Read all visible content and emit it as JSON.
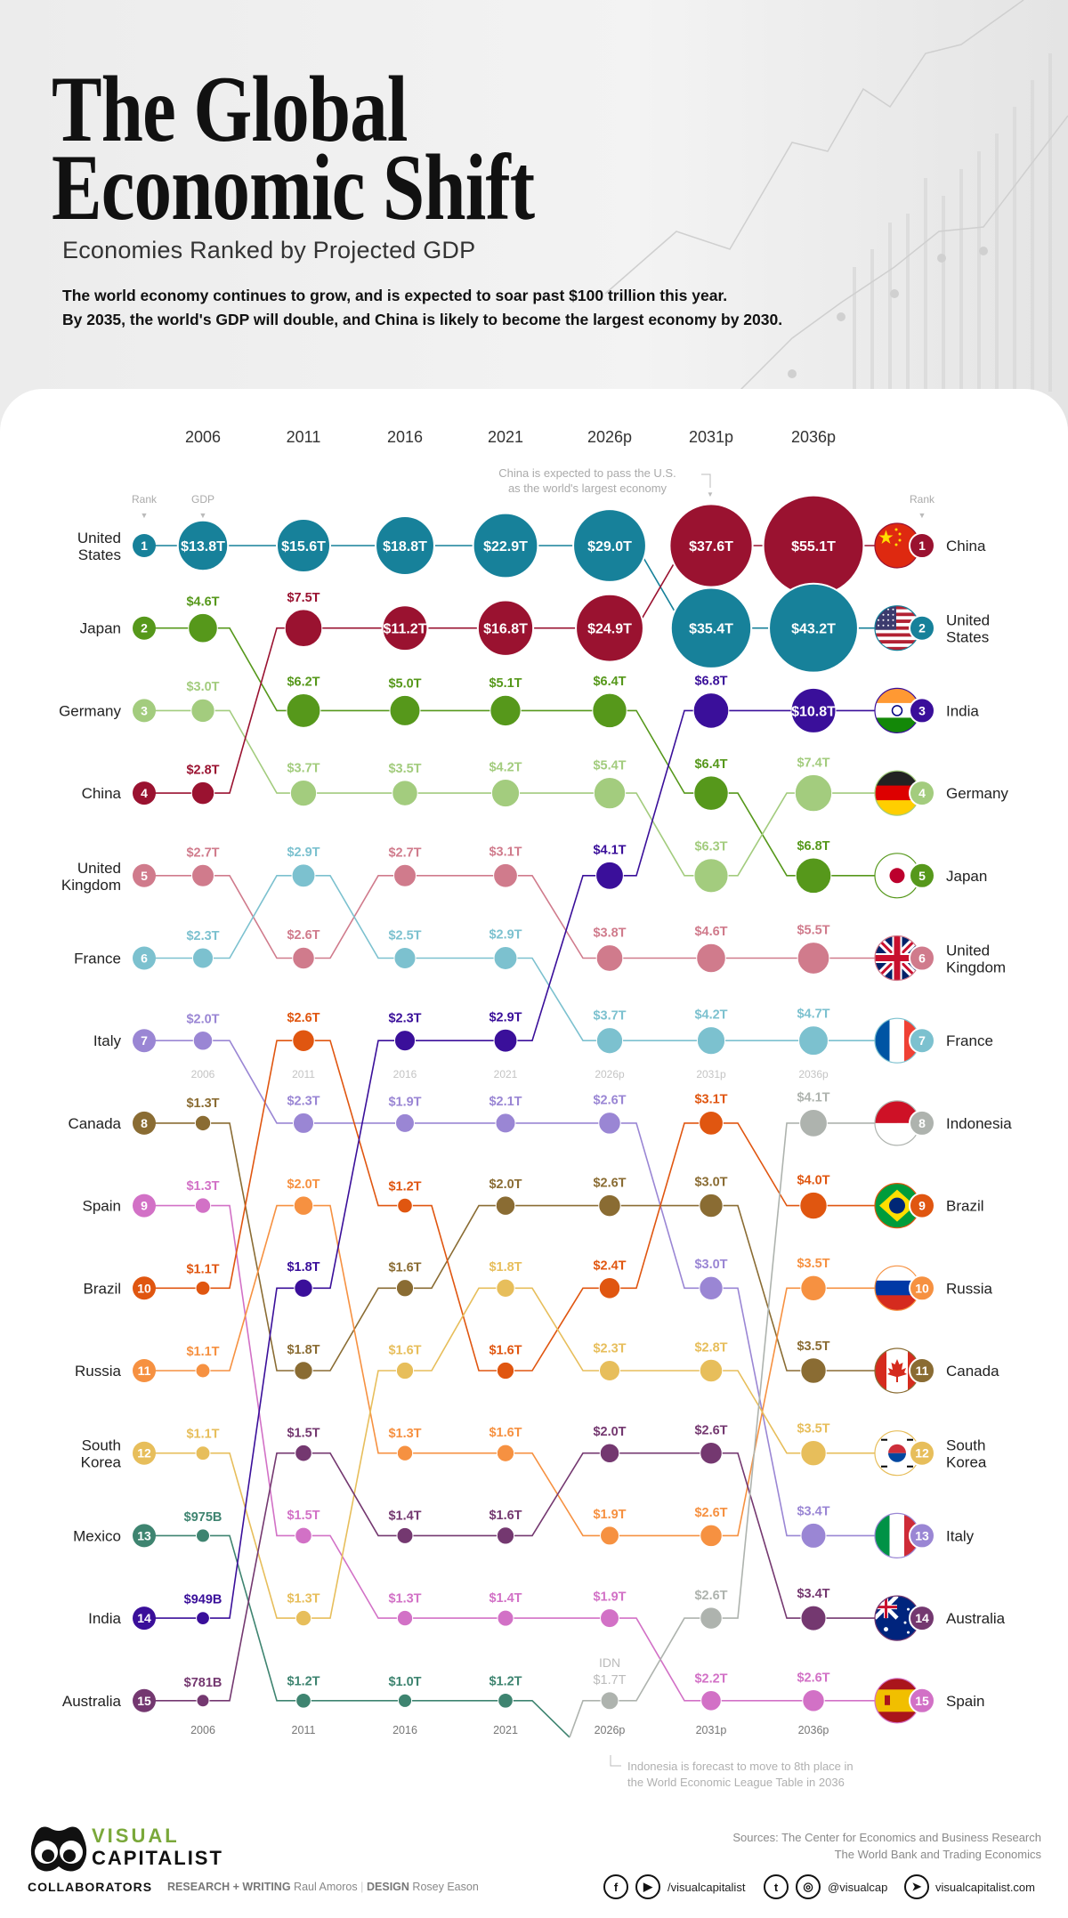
{
  "header": {
    "title_line1": "The Global",
    "title_line2": "Economic Shift",
    "subtitle": "Economies Ranked by Projected GDP",
    "description_line1": "The world economy continues to grow, and is expected to soar past $100 trillion this year.",
    "description_line2": "By 2035, the world's GDP will double, and China is likely to become the largest economy by 2030."
  },
  "chart_data": {
    "type": "line",
    "variant": "bump chart (rank by year, bubble size = GDP)",
    "years": [
      "2006",
      "2011",
      "2016",
      "2021",
      "2026p",
      "2031p",
      "2036p"
    ],
    "rank_label": "Rank",
    "gdp_label": "GDP",
    "y_axis": "rank 1 (top) to 15 (bottom)",
    "annotations": {
      "china_note_line1": "China is expected to pass the U.S.",
      "china_note_line2": "as the world's largest economy",
      "indonesia_note_line1": "Indonesia is forecast to move to 8th place in",
      "indonesia_note_line2": "the World Economic League Table in 2036",
      "idn_label": "IDN"
    },
    "series": [
      {
        "name": "United States",
        "color": "#17819a",
        "flag": "us-flag-icon",
        "rank": [
          1,
          1,
          1,
          1,
          1,
          2,
          2
        ],
        "gdp": [
          "$13.8T",
          "$15.6T",
          "$18.8T",
          "$22.9T",
          "$29.0T",
          "$35.4T",
          "$43.2T"
        ]
      },
      {
        "name": "Japan",
        "color": "#56981b",
        "flag": "japan-flag-icon",
        "rank": [
          2,
          3,
          3,
          3,
          3,
          4,
          5
        ],
        "gdp": [
          "$4.6T",
          "$6.2T",
          "$5.0T",
          "$5.1T",
          "$6.4T",
          "$6.4T",
          "$6.8T"
        ]
      },
      {
        "name": "Germany",
        "color": "#a3cc7e",
        "flag": "germany-flag-icon",
        "rank": [
          3,
          4,
          4,
          4,
          4,
          5,
          4
        ],
        "gdp": [
          "$3.0T",
          "$3.7T",
          "$3.5T",
          "$4.2T",
          "$5.4T",
          "$6.3T",
          "$7.4T"
        ]
      },
      {
        "name": "China",
        "color": "#9a1230",
        "flag": "china-flag-icon",
        "rank": [
          4,
          2,
          2,
          2,
          2,
          1,
          1
        ],
        "gdp": [
          "$2.8T",
          "$7.5T",
          "$11.2T",
          "$16.8T",
          "$24.9T",
          "$37.6T",
          "$55.1T"
        ]
      },
      {
        "name": "United Kingdom",
        "color": "#d07b8c",
        "flag": "uk-flag-icon",
        "rank": [
          5,
          6,
          5,
          5,
          6,
          6,
          6
        ],
        "gdp": [
          "$2.7T",
          "$2.6T",
          "$2.7T",
          "$3.1T",
          "$3.8T",
          "$4.6T",
          "$5.5T"
        ]
      },
      {
        "name": "France",
        "color": "#7cc1cf",
        "flag": "france-flag-icon",
        "rank": [
          6,
          5,
          6,
          6,
          7,
          7,
          7
        ],
        "gdp": [
          "$2.3T",
          "$2.9T",
          "$2.5T",
          "$2.9T",
          "$3.7T",
          "$4.2T",
          "$4.7T"
        ]
      },
      {
        "name": "Italy",
        "color": "#9a86d4",
        "flag": "italy-flag-icon",
        "rank": [
          7,
          8,
          8,
          8,
          8,
          10,
          13
        ],
        "gdp": [
          "$2.0T",
          "$2.3T",
          "$1.9T",
          "$2.1T",
          "$2.6T",
          "$3.0T",
          "$3.4T"
        ]
      },
      {
        "name": "Canada",
        "color": "#8a6c33",
        "flag": "canada-flag-icon",
        "rank": [
          8,
          11,
          10,
          9,
          9,
          9,
          11
        ],
        "gdp": [
          "$1.3T",
          "$1.8T",
          "$1.6T",
          "$2.0T",
          "$2.6T",
          "$3.0T",
          "$3.5T"
        ]
      },
      {
        "name": "Spain",
        "color": "#d271c6",
        "flag": "spain-flag-icon",
        "rank": [
          9,
          13,
          14,
          14,
          14,
          15,
          15
        ],
        "gdp": [
          "$1.3T",
          "$1.5T",
          "$1.3T",
          "$1.4T",
          "$1.9T",
          "$2.2T",
          "$2.6T"
        ]
      },
      {
        "name": "Brazil",
        "color": "#e05610",
        "flag": "brazil-flag-icon",
        "rank": [
          10,
          7,
          9,
          11,
          10,
          8,
          9
        ],
        "gdp": [
          "$1.1T",
          "$2.6T",
          "$1.2T",
          "$1.6T",
          "$2.4T",
          "$3.1T",
          "$4.0T"
        ]
      },
      {
        "name": "Russia",
        "color": "#f69141",
        "flag": "russia-flag-icon",
        "rank": [
          11,
          9,
          12,
          12,
          13,
          13,
          10
        ],
        "gdp": [
          "$1.1T",
          "$2.0T",
          "$1.3T",
          "$1.6T",
          "$1.9T",
          "$2.6T",
          "$3.5T"
        ]
      },
      {
        "name": "South Korea",
        "color": "#e7be5b",
        "flag": "south-korea-flag-icon",
        "rank": [
          12,
          14,
          11,
          10,
          11,
          11,
          12
        ],
        "gdp": [
          "$1.1T",
          "$1.3T",
          "$1.6T",
          "$1.8T",
          "$2.3T",
          "$2.8T",
          "$3.5T"
        ]
      },
      {
        "name": "Mexico",
        "color": "#3e8470",
        "flag": "mexico-flag-icon",
        "rank": [
          13,
          15,
          15,
          15,
          null,
          null,
          null
        ],
        "gdp": [
          "$975B",
          "$1.2T",
          "$1.0T",
          "$1.2T",
          null,
          null,
          null
        ]
      },
      {
        "name": "India",
        "color": "#3a0f9a",
        "flag": "india-flag-icon",
        "rank": [
          14,
          10,
          7,
          7,
          5,
          3,
          3
        ],
        "gdp": [
          "$949B",
          "$1.8T",
          "$2.3T",
          "$2.9T",
          "$4.1T",
          "$6.8T",
          "$10.8T"
        ]
      },
      {
        "name": "Australia",
        "color": "#743870",
        "flag": "australia-flag-icon",
        "rank": [
          15,
          12,
          13,
          13,
          12,
          12,
          14
        ],
        "gdp": [
          "$781B",
          "$1.5T",
          "$1.4T",
          "$1.6T",
          "$2.0T",
          "$2.6T",
          "$3.4T"
        ]
      },
      {
        "name": "Indonesia",
        "color": "#aeb3ae",
        "flag": "indonesia-flag-icon",
        "rank": [
          null,
          null,
          null,
          null,
          15,
          14,
          8
        ],
        "gdp": [
          null,
          null,
          null,
          null,
          "$1.7T",
          "$2.6T",
          "$4.1T"
        ]
      }
    ]
  },
  "footer": {
    "logo_line1": "VISUAL",
    "logo_line2": "CAPITALIST",
    "sources_line1": "Sources: The Center for Economics and Business Research",
    "sources_line2": "The World Bank and Trading Economics",
    "collaborators_label": "COLLABORATORS",
    "research_label": "RESEARCH + WRITING",
    "research_name": "Raul Amoros",
    "design_label": "DESIGN",
    "design_name": "Rosey Eason",
    "facebook_youtube_handle": "/visualcapitalist",
    "twitter_instagram_handle": "@visualcap",
    "website": "visualcapitalist.com"
  }
}
